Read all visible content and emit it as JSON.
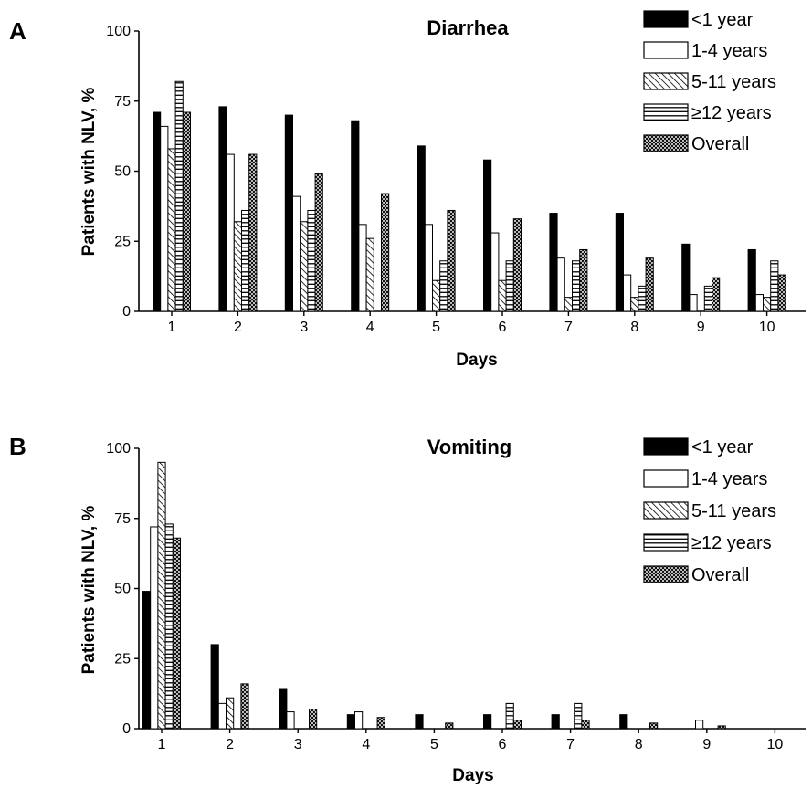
{
  "figure": {
    "panels": [
      {
        "letter": "A"
      },
      {
        "letter": "B"
      }
    ]
  },
  "series_style": [
    {
      "name": "<1 year",
      "fill": "solid",
      "color": "#000000"
    },
    {
      "name": "1-4 years",
      "fill": "white",
      "color": "#ffffff"
    },
    {
      "name": "5-11 years",
      "fill": "diagonal-hatch",
      "color": "#000000"
    },
    {
      "name": "≥12 years",
      "fill": "horizontal-hatch",
      "color": "#000000"
    },
    {
      "name": "Overall",
      "fill": "crosshatch",
      "color": "#000000"
    }
  ],
  "chart_data": [
    {
      "type": "bar",
      "title": "Diarrhea",
      "xlabel": "Days",
      "ylabel": "Patients with NLV, %",
      "categories": [
        "1",
        "2",
        "3",
        "4",
        "5",
        "6",
        "7",
        "8",
        "9",
        "10"
      ],
      "yticks": [
        "0",
        "25",
        "50",
        "75",
        "100"
      ],
      "ylim": [
        0,
        100
      ],
      "legend_position": "top-right",
      "grid": false,
      "series": [
        {
          "name": "<1 year",
          "values": [
            71,
            73,
            70,
            68,
            59,
            54,
            35,
            35,
            24,
            22
          ]
        },
        {
          "name": "1-4 years",
          "values": [
            66,
            56,
            41,
            31,
            31,
            28,
            19,
            13,
            6,
            6
          ]
        },
        {
          "name": "5-11 years",
          "values": [
            58,
            32,
            32,
            26,
            11,
            11,
            5,
            5,
            0,
            5
          ]
        },
        {
          "name": "≥12 years",
          "values": [
            82,
            36,
            36,
            0,
            18,
            18,
            18,
            9,
            9,
            18
          ]
        },
        {
          "name": "Overall",
          "values": [
            71,
            56,
            49,
            42,
            36,
            33,
            22,
            19,
            12,
            13
          ]
        }
      ]
    },
    {
      "type": "bar",
      "title": "Vomiting",
      "xlabel": "Days",
      "ylabel": "Patients with NLV, %",
      "categories": [
        "1",
        "2",
        "3",
        "4",
        "5",
        "6",
        "7",
        "8",
        "9",
        "10"
      ],
      "yticks": [
        "0",
        "25",
        "50",
        "75",
        "100"
      ],
      "ylim": [
        0,
        100
      ],
      "legend_position": "top-right",
      "grid": false,
      "series": [
        {
          "name": "<1 year",
          "values": [
            49,
            30,
            14,
            5,
            5,
            5,
            5,
            5,
            0,
            0
          ]
        },
        {
          "name": "1-4 years",
          "values": [
            72,
            9,
            6,
            6,
            0,
            0,
            0,
            0,
            3,
            0
          ]
        },
        {
          "name": "5-11 years",
          "values": [
            95,
            11,
            0,
            0,
            0,
            0,
            0,
            0,
            0,
            0
          ]
        },
        {
          "name": "≥12 years",
          "values": [
            73,
            0,
            0,
            0,
            0,
            9,
            9,
            0,
            0,
            0
          ]
        },
        {
          "name": "Overall",
          "values": [
            68,
            16,
            7,
            4,
            2,
            3,
            3,
            2,
            1,
            0
          ]
        }
      ]
    }
  ]
}
